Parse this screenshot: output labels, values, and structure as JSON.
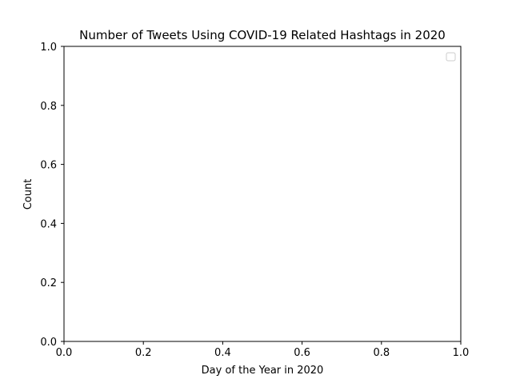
{
  "chart_data": {
    "type": "line",
    "title": "Number of Tweets Using COVID-19 Related Hashtags in 2020",
    "xlabel": "Day of the Year in 2020",
    "ylabel": "Count",
    "xlim": [
      0,
      1
    ],
    "ylim": [
      0,
      1
    ],
    "x_ticks": [
      "0.0",
      "0.2",
      "0.4",
      "0.6",
      "0.8",
      "1.0"
    ],
    "y_ticks": [
      "0.0",
      "0.2",
      "0.4",
      "0.6",
      "0.8",
      "1.0"
    ],
    "series": [],
    "grid": false,
    "legend": {
      "placement": "top-right",
      "entries": []
    }
  }
}
